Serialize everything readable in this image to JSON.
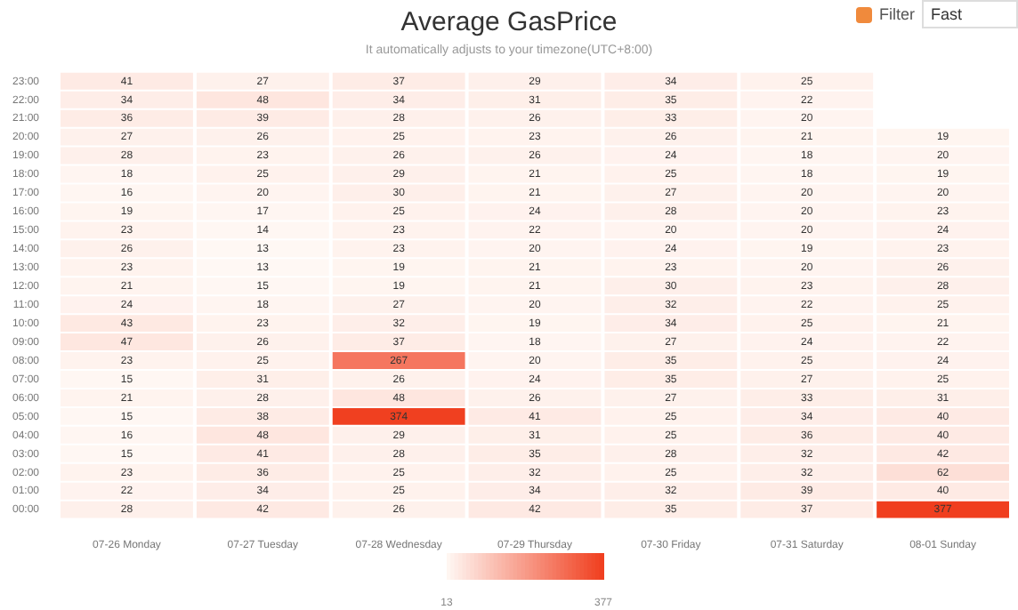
{
  "chart_data": {
    "type": "heatmap",
    "title": "Average GasPrice",
    "subtitle": "It automatically adjusts to your timezone(UTC+8:00)",
    "categories": [
      "07-26 Monday",
      "07-27 Tuesday",
      "07-28 Wednesday",
      "07-29 Thursday",
      "07-30 Friday",
      "07-31 Saturday",
      "08-01 Sunday"
    ],
    "y_categories": [
      "23:00",
      "22:00",
      "21:00",
      "20:00",
      "19:00",
      "18:00",
      "17:00",
      "16:00",
      "15:00",
      "14:00",
      "13:00",
      "12:00",
      "11:00",
      "10:00",
      "09:00",
      "08:00",
      "07:00",
      "06:00",
      "05:00",
      "04:00",
      "03:00",
      "02:00",
      "01:00",
      "00:00"
    ],
    "cells": [
      [
        41,
        27,
        37,
        29,
        34,
        25,
        null
      ],
      [
        34,
        48,
        34,
        31,
        35,
        22,
        null
      ],
      [
        36,
        39,
        28,
        26,
        33,
        20,
        null
      ],
      [
        27,
        26,
        25,
        23,
        26,
        21,
        19
      ],
      [
        28,
        23,
        26,
        26,
        24,
        18,
        20
      ],
      [
        18,
        25,
        29,
        21,
        25,
        18,
        19
      ],
      [
        16,
        20,
        30,
        21,
        27,
        20,
        20
      ],
      [
        19,
        17,
        25,
        24,
        28,
        20,
        23
      ],
      [
        23,
        14,
        23,
        22,
        20,
        20,
        24
      ],
      [
        26,
        13,
        23,
        20,
        24,
        19,
        23
      ],
      [
        23,
        13,
        19,
        21,
        23,
        20,
        26
      ],
      [
        21,
        15,
        19,
        21,
        30,
        23,
        28
      ],
      [
        24,
        18,
        27,
        20,
        32,
        22,
        25
      ],
      [
        43,
        23,
        32,
        19,
        34,
        25,
        21
      ],
      [
        47,
        26,
        37,
        18,
        27,
        24,
        22
      ],
      [
        23,
        25,
        267,
        20,
        35,
        25,
        24
      ],
      [
        15,
        31,
        26,
        24,
        35,
        27,
        25
      ],
      [
        21,
        28,
        48,
        26,
        27,
        33,
        31
      ],
      [
        15,
        38,
        374,
        41,
        25,
        34,
        40
      ],
      [
        16,
        48,
        29,
        31,
        25,
        36,
        40
      ],
      [
        15,
        41,
        28,
        35,
        28,
        32,
        42
      ],
      [
        23,
        36,
        25,
        32,
        25,
        32,
        62
      ],
      [
        22,
        34,
        25,
        34,
        32,
        39,
        40
      ],
      [
        28,
        42,
        26,
        42,
        35,
        37,
        377
      ]
    ],
    "clim": [
      13,
      377
    ],
    "cticks": [
      13,
      377
    ],
    "data_labels": true,
    "annotations": [
      "Filter",
      "Fast"
    ]
  }
}
